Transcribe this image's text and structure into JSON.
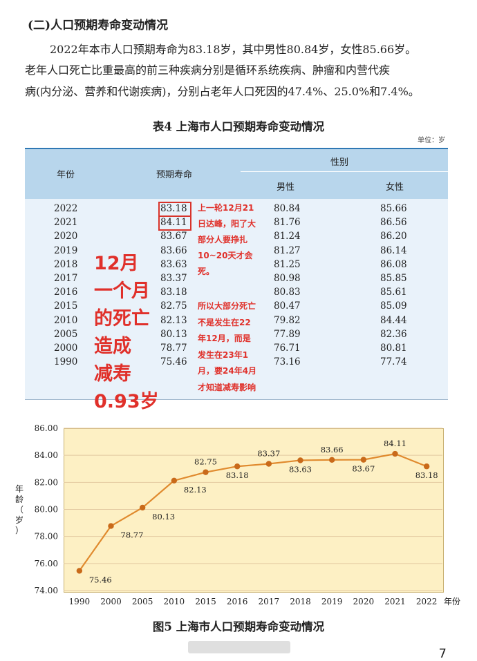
{
  "section": {
    "heading": "(二)人口预期寿命变动情况",
    "para_line1": "2022年本市人口预期寿命为83.18岁，其中男性80.84岁，女性85.66岁。",
    "para_line2": "老年人口死亡比重最高的前三种疾病分别是循环系统疾病、肿瘤和内营代疾",
    "para_line3": "病(内分泌、营养和代谢疾病)，分别占老年人口死因的47.4%、25.0%和7.4%。"
  },
  "table": {
    "title": "表4  上海市人口预期寿命变动情况",
    "unit": "单位：岁",
    "headers": {
      "year": "年份",
      "life": "预期寿命",
      "gender": "性别",
      "male": "男性",
      "female": "女性"
    },
    "rows": [
      {
        "year": "2022",
        "life": "83.18",
        "male": "80.84",
        "female": "85.66"
      },
      {
        "year": "2021",
        "life": "84.11",
        "male": "81.76",
        "female": "86.56"
      },
      {
        "year": "2020",
        "life": "83.67",
        "male": "81.24",
        "female": "86.20"
      },
      {
        "year": "2019",
        "life": "83.66",
        "male": "81.27",
        "female": "86.14"
      },
      {
        "year": "2018",
        "life": "83.63",
        "male": "81.25",
        "female": "86.08"
      },
      {
        "year": "2017",
        "life": "83.37",
        "male": "80.98",
        "female": "85.85"
      },
      {
        "year": "2016",
        "life": "83.18",
        "male": "80.83",
        "female": "85.61"
      },
      {
        "year": "2015",
        "life": "82.75",
        "male": "80.47",
        "female": "85.09"
      },
      {
        "year": "2010",
        "life": "82.13",
        "male": "79.82",
        "female": "84.44"
      },
      {
        "year": "2005",
        "life": "80.13",
        "male": "77.89",
        "female": "82.36"
      },
      {
        "year": "2000",
        "life": "78.77",
        "male": "76.71",
        "female": "80.81"
      },
      {
        "year": "1990",
        "life": "75.46",
        "male": "73.16",
        "female": "77.74"
      }
    ]
  },
  "annotation": {
    "big_lines": [
      "12月",
      "一个月",
      "的死亡",
      "造成",
      "减寿",
      "0.93岁"
    ],
    "note_top": [
      "上一轮12月21",
      "日达峰，阳了大",
      "部分人要挣扎",
      "10~20天才会",
      "死。"
    ],
    "note_bottom": [
      "所以大部分死亡",
      "不是发生在22",
      "年12月，而是",
      "发生在23年1",
      "月，要24年4月",
      "才知道减寿影响"
    ],
    "colors": {
      "red": "#e0302a"
    }
  },
  "chart_data": {
    "type": "line",
    "categories": [
      "1990",
      "2000",
      "2005",
      "2010",
      "2015",
      "2016",
      "2017",
      "2018",
      "2019",
      "2020",
      "2021",
      "2022"
    ],
    "values": [
      75.46,
      78.77,
      80.13,
      82.13,
      82.75,
      83.18,
      83.37,
      83.63,
      83.66,
      83.67,
      84.11,
      83.18
    ],
    "labels": [
      "75.46",
      "78.77",
      "80.13",
      "82.13",
      "82.75",
      "83.18",
      "83.37",
      "83.63",
      "83.66",
      "83.67",
      "84.11",
      "83.18"
    ],
    "ylim": [
      74,
      86
    ],
    "yticks": [
      "74.00",
      "76.00",
      "78.00",
      "80.00",
      "82.00",
      "84.00",
      "86.00"
    ],
    "ylabel": "年龄（岁）",
    "xlabel": "年份",
    "grid": "horizontal",
    "colors": {
      "line": "#e08a2e",
      "marker": "#c96a1a",
      "background": "#fdf0c4"
    }
  },
  "figure": {
    "caption": "图5  上海市人口预期寿命变动情况"
  },
  "page": {
    "number": "7"
  }
}
